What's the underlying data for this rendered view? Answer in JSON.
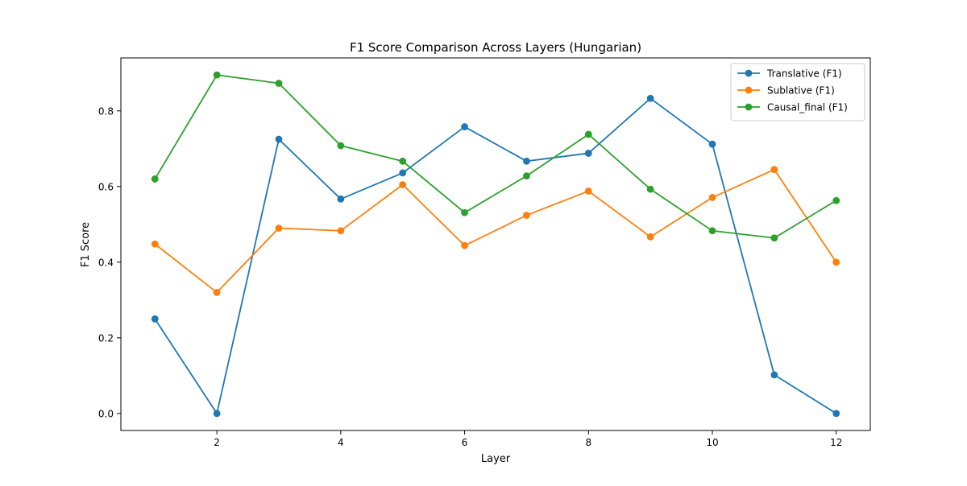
{
  "chart_data": {
    "type": "line",
    "title": "F1 Score Comparison Across Layers (Hungarian)",
    "xlabel": "Layer",
    "ylabel": "F1 Score",
    "x": [
      1,
      2,
      3,
      4,
      5,
      6,
      7,
      8,
      9,
      10,
      11,
      12
    ],
    "xlim": [
      0.45,
      12.55
    ],
    "ylim": [
      -0.045,
      0.94
    ],
    "xticks": [
      2,
      4,
      6,
      8,
      10,
      12
    ],
    "yticks": [
      0.0,
      0.2,
      0.4,
      0.6,
      0.8
    ],
    "xtick_labels": [
      "2",
      "4",
      "6",
      "8",
      "10",
      "12"
    ],
    "ytick_labels": [
      "0.0",
      "0.2",
      "0.4",
      "0.6",
      "0.8"
    ],
    "grid": false,
    "legend_position": "top-right",
    "series": [
      {
        "name": "Translative (F1)",
        "color": "#1f77b4",
        "marker": "circle",
        "values": [
          0.25,
          0.0,
          0.725,
          0.567,
          0.636,
          0.758,
          0.667,
          0.688,
          0.833,
          0.712,
          0.102,
          0.0
        ]
      },
      {
        "name": "Sublative (F1)",
        "color": "#ff7f0e",
        "marker": "circle",
        "values": [
          0.448,
          0.32,
          0.49,
          0.483,
          0.605,
          0.444,
          0.524,
          0.588,
          0.467,
          0.571,
          0.645,
          0.4
        ]
      },
      {
        "name": "Causal_final (F1)",
        "color": "#2ca02c",
        "marker": "circle",
        "values": [
          0.62,
          0.895,
          0.873,
          0.708,
          0.667,
          0.531,
          0.628,
          0.738,
          0.593,
          0.483,
          0.464,
          0.563
        ]
      }
    ]
  }
}
